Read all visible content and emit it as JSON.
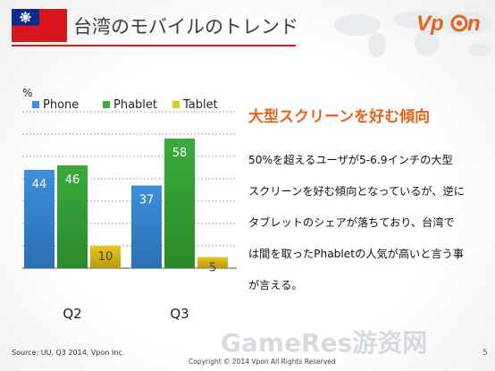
{
  "header": {
    "title": "台湾のモバイルのトレンド",
    "logo": "Vpon"
  },
  "colors": {
    "accent_red": "#d51a1a",
    "orange": "#e8621a",
    "phone": "#3c8fdc",
    "phablet": "#3caa3c",
    "tablet": "#e6c619"
  },
  "chart_data": {
    "type": "bar",
    "categories": [
      "Q2",
      "Q3"
    ],
    "series": [
      {
        "name": "Phone",
        "values": [
          44,
          37
        ]
      },
      {
        "name": "Phablet",
        "values": [
          46,
          58
        ]
      },
      {
        "name": "Tablet",
        "values": [
          10,
          5
        ]
      }
    ],
    "unit_label": "%",
    "ylim": [
      0,
      70
    ],
    "grid": true,
    "legend_position": "top"
  },
  "content": {
    "headline": "大型スクリーンを好む傾向",
    "lines": [
      "50%を超えるユーザが5-6.9インチの大型",
      "スクリーンを好む傾向となっているが、逆に",
      "タブレットのシェアが落ちており、台湾で",
      "は間を取ったPhabletの人気が高いと言う事",
      "が言える。"
    ]
  },
  "footer": {
    "source": "Source:  UU, Q3 2014,  Vpon Inc.",
    "copyright": "Copyright © 2014 Vpon All Rights Reserved",
    "page": "5",
    "watermark": "GameRes游资网"
  }
}
